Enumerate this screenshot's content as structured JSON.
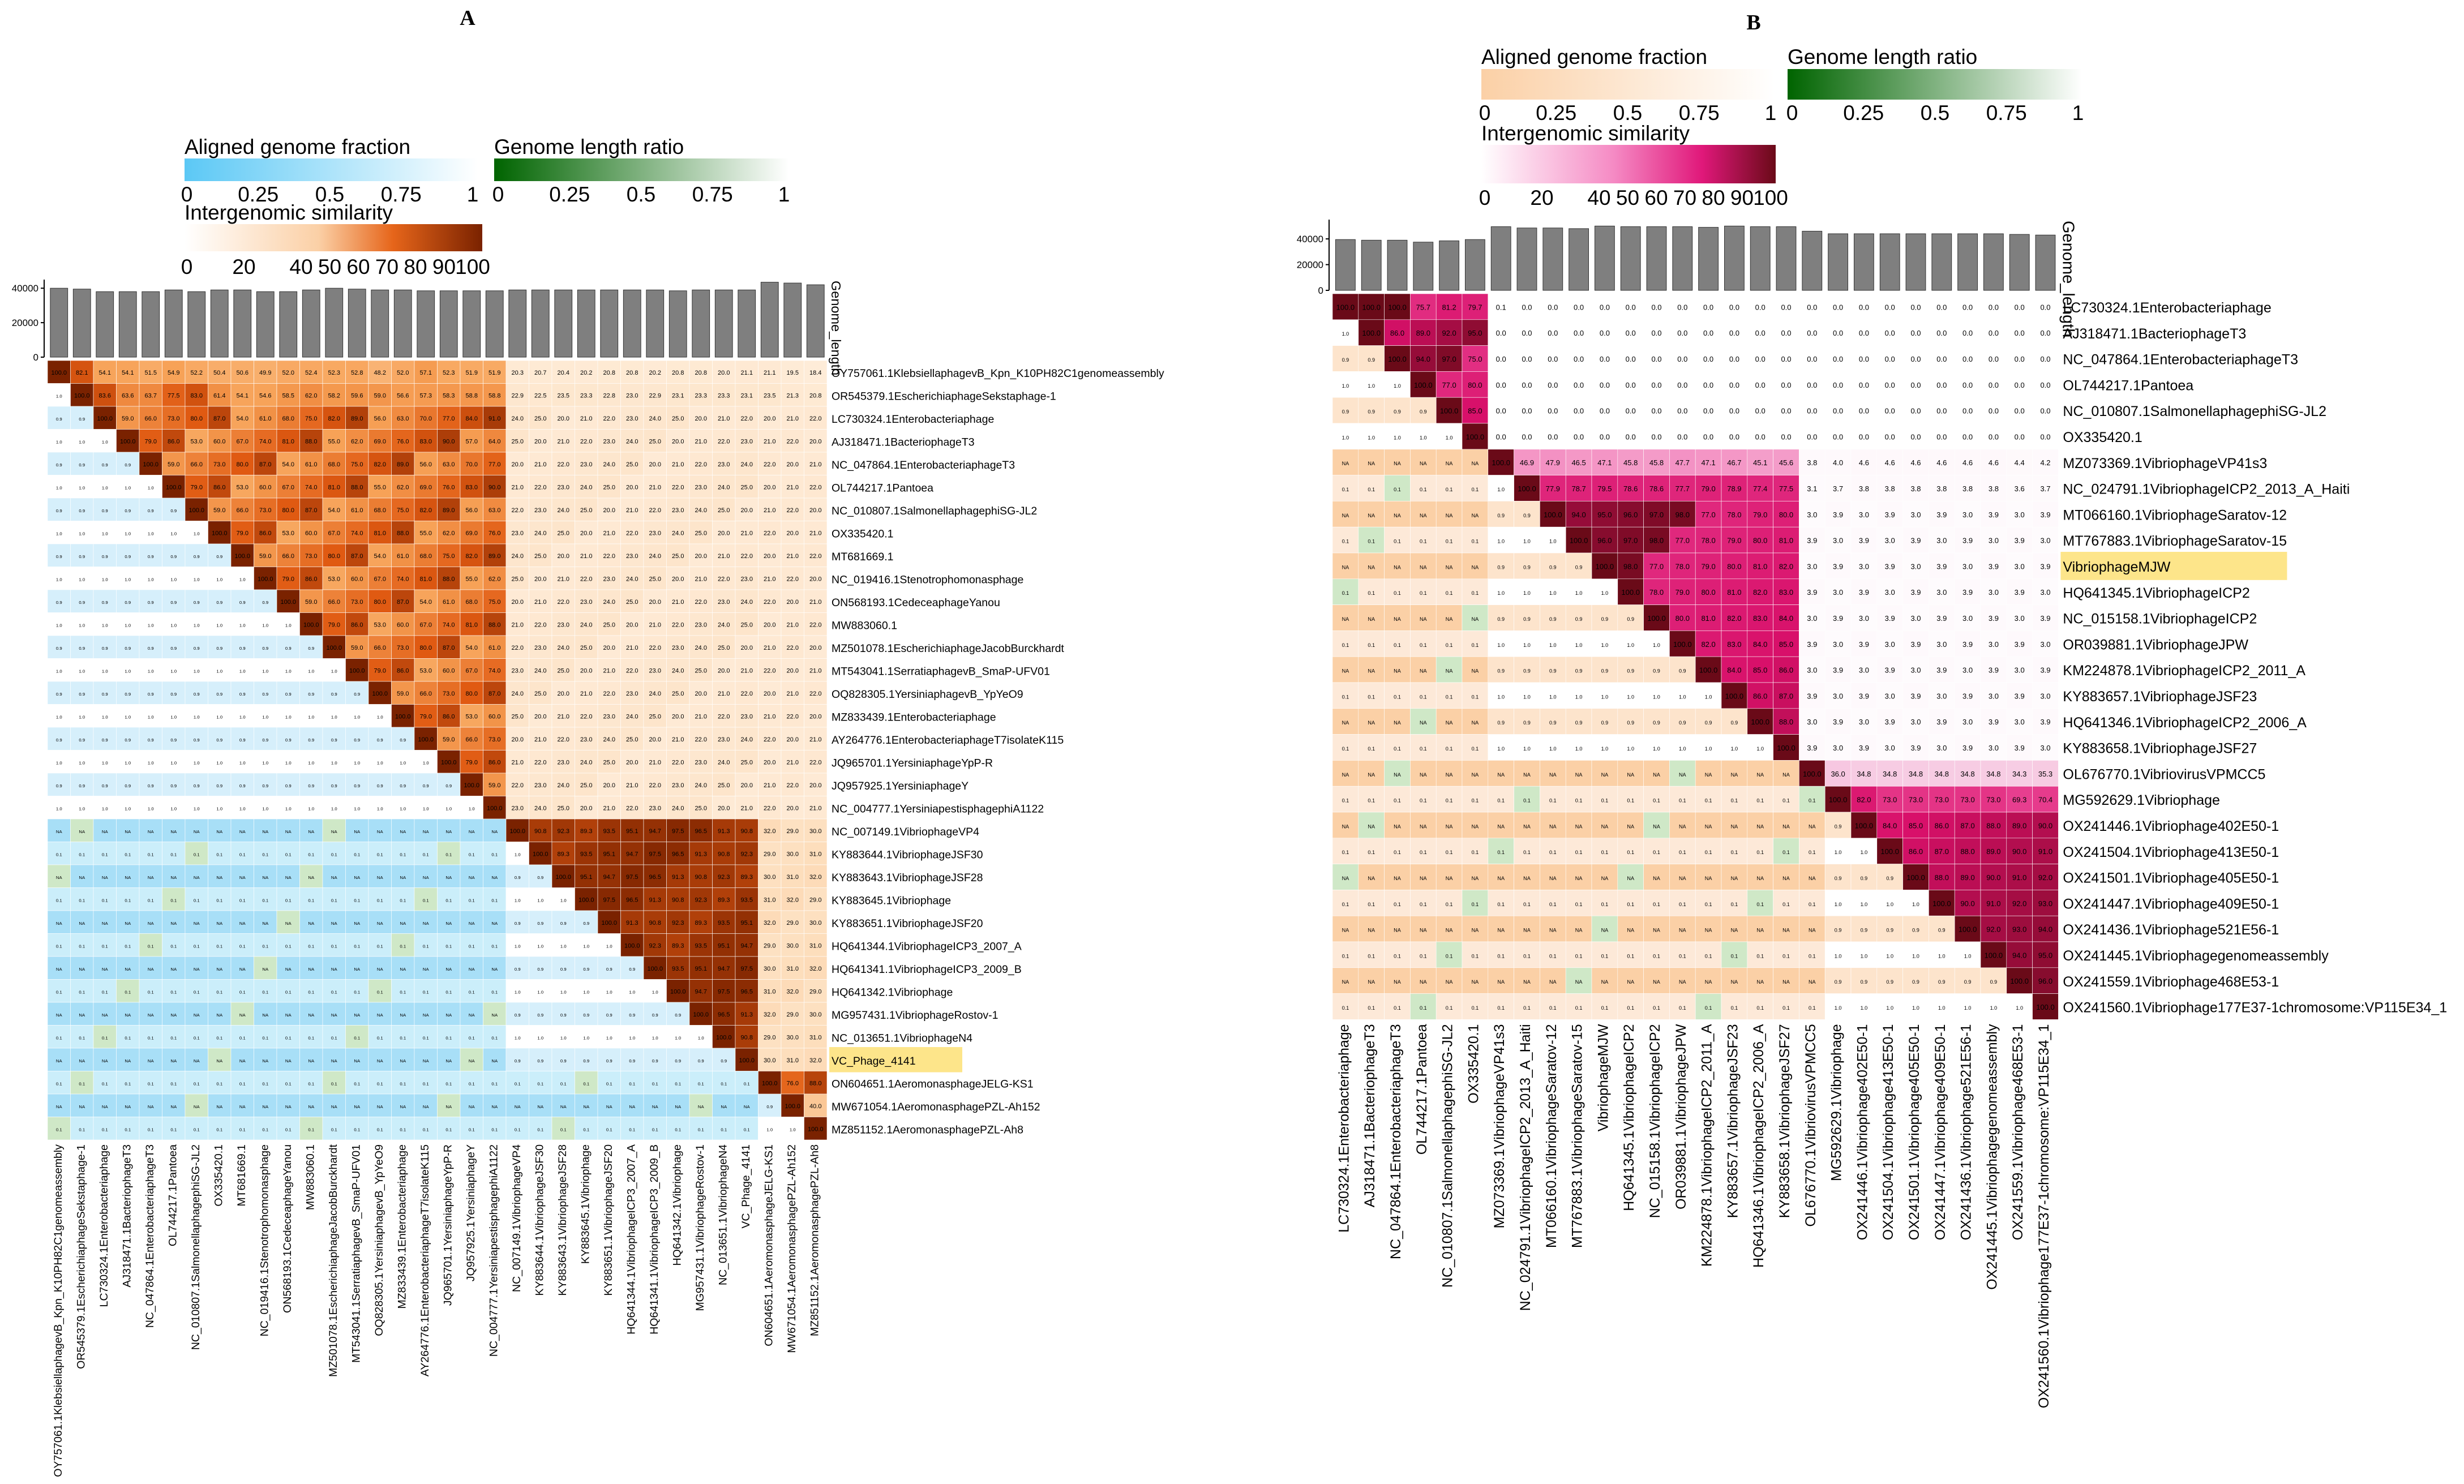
{
  "chart_data": [
    {
      "panel": "A",
      "type": "heatmap",
      "title": "A",
      "legends": {
        "aligned": {
          "title": "Aligned genome fraction",
          "ticks": [
            "0",
            "0.25",
            "0.5",
            "0.75",
            "1"
          ],
          "colors": [
            "#5bc8f5",
            "#ffffff"
          ]
        },
        "length": {
          "title": "Genome length ratio",
          "ticks": [
            "0",
            "0.25",
            "0.5",
            "0.75",
            "1"
          ],
          "colors": [
            "#006400",
            "#ffffff"
          ]
        },
        "similarity": {
          "title": "Intergenomic similarity",
          "ticks": [
            "0",
            "20",
            "40",
            "50",
            "60",
            "70",
            "80",
            "90",
            "100"
          ],
          "colors": [
            "#ffffff",
            "#f4a35a",
            "#e6651a",
            "#7a2200"
          ]
        }
      },
      "bar_axis": {
        "label": "Genome_length",
        "ticks": [
          "0",
          "20000",
          "40000"
        ],
        "ymax": 45000
      },
      "genomes": [
        "OY757061.1KlebsiellaphagevB_Kpn_K10PH82C1genomeassembly",
        "OR545379.1EscherichiaphageSekstaphage-1",
        "LC730324.1Enterobacteriaphage",
        "AJ318471.1BacteriophageT3",
        "NC_047864.1EnterobacteriaphageT3",
        "OL744217.1Pantoea",
        "NC_010807.1SalmonellaphagephiSG-JL2",
        "OX335420.1",
        "MT681669.1",
        "NC_019416.1Stenotrophomonasphage",
        "ON568193.1CedeceaphageYanou",
        "MW883060.1",
        "MZ501078.1EscherichiaphageJacobBurckhardt",
        "MT543041.1SerratiaphagevB_SmaP-UFV01",
        "OQ828305.1YersiniaphagevB_YpYeO9",
        "MZ833439.1Enterobacteriaphage",
        "AY264776.1EnterobacteriaphageT7isolateK115",
        "JQ965701.1YersiniaphageYpP-R",
        "JQ957925.1YersiniaphageY",
        "NC_004777.1YersiniapestisphagephiA1122",
        "NC_007149.1VibriophageVP4",
        "KY883644.1VibriophageJSF30",
        "KY883643.1VibriophageJSF28",
        "KY883645.1Vibriophage",
        "KY883651.1VibriophageJSF20",
        "HQ641344.1VibriophageICP3_2007_A",
        "HQ641341.1VibriophageICP3_2009_B",
        "HQ641342.1Vibriophage",
        "MG957431.1VibriophageRostov-1",
        "NC_013651.1VibriophageN4",
        "VC_Phage_4141",
        "ON604651.1AeromonasphageJELG-KS1",
        "MW671054.1AeromonasphagePZL-Ah152",
        "MZ851152.1AeromonasphagePZL-Ah8"
      ],
      "lengths": [
        40,
        39.5,
        38,
        38,
        38,
        39,
        38,
        39,
        39,
        38,
        38,
        39,
        40,
        39.5,
        39,
        39,
        38.5,
        38.5,
        38.5,
        38.5,
        39,
        39,
        39,
        39,
        39,
        39,
        39,
        38.5,
        39,
        39,
        39,
        43.5,
        43,
        42
      ],
      "highlight": "VC_Phage_4141",
      "upper_first_rows": [
        [
          "100.0",
          "82.1",
          "54.1",
          "54.1",
          "51.5",
          "54.9",
          "52.2",
          "50.4",
          "50.6",
          "49.9",
          "52.0",
          "52.4",
          "52.3",
          "52.8",
          "48.2",
          "52.0",
          "57.1",
          "52.3",
          "51.9",
          "51.9",
          "20.3",
          "20.7",
          "20.4",
          "20.2",
          "20.8",
          "20.8",
          "20.2",
          "20.8",
          "20.8",
          "20.0",
          "21.1",
          "21.1",
          "19.5",
          "18.4"
        ],
        [
          "",
          "100.0",
          "83.6",
          "63.6",
          "63.7",
          "77.5",
          "83.0",
          "61.4",
          "54.1",
          "54.6",
          "58.5",
          "62.0",
          "58.2",
          "59.6",
          "59.0",
          "56.6",
          "57.3",
          "58.3",
          "58.8",
          "58.8",
          "22.9",
          "22.5",
          "23.5",
          "23.3",
          "22.8",
          "23.0",
          "22.9",
          "23.1",
          "23.3",
          "23.3",
          "23.1",
          "23.5",
          "21.3",
          "20.8"
        ]
      ],
      "upper_block_sample": [
        "95.1",
        "94.7",
        "97.5",
        "96.5",
        "91.3",
        "90.8",
        "92.3",
        "89.3",
        "93.5",
        "31.6",
        "31.1",
        "32.5",
        "31.3",
        "31.4",
        "32.3"
      ],
      "lower_sample": [
        "0.9",
        "1.0",
        "0.8",
        "0.8",
        "1.0",
        "NA",
        "1.0",
        "0.9",
        "0.9"
      ]
    },
    {
      "panel": "B",
      "type": "heatmap",
      "title": "B",
      "legends": {
        "aligned": {
          "title": "Aligned genome fraction",
          "ticks": [
            "0",
            "0.25",
            "0.5",
            "0.75",
            "1"
          ],
          "colors": [
            "#fbd0a6",
            "#ffffff"
          ]
        },
        "length": {
          "title": "Genome length ratio",
          "ticks": [
            "0",
            "0.25",
            "0.5",
            "0.75",
            "1"
          ],
          "colors": [
            "#006400",
            "#ffffff"
          ]
        },
        "similarity": {
          "title": "Intergenomic similarity",
          "ticks": [
            "0",
            "20",
            "40",
            "50",
            "60",
            "70",
            "80",
            "90",
            "100"
          ],
          "colors": [
            "#ffffff",
            "#f07ab8",
            "#e0187a",
            "#7a0a1a"
          ]
        }
      },
      "bar_axis": {
        "label": "Genome_length",
        "ticks": [
          "0",
          "20000",
          "40000"
        ],
        "ymax": 55000
      },
      "genomes": [
        "LC730324.1Enterobacteriaphage",
        "AJ318471.1BacteriophageT3",
        "NC_047864.1EnterobacteriaphageT3",
        "OL744217.1Pantoea",
        "NC_010807.1SalmonellaphagephiSG-JL2",
        "OX335420.1",
        "MZ073369.1VibriophageVP41s3",
        "NC_024791.1VibriophageICP2_2013_A_Haiti",
        "MT066160.1VibriophageSaratov-12",
        "MT767883.1VibriophageSaratov-15",
        "VibriophageMJW",
        "HQ641345.1VibriophageICP2",
        "NC_015158.1VibriophageICP2",
        "OR039881.1VibriophageJPW",
        "KM224878.1VibriophageICP2_2011_A",
        "KY883657.1VibriophageJSF23",
        "HQ641346.1VibriophageICP2_2006_A",
        "KY883658.1VibriophageJSF27",
        "OL676770.1VibriovirusVPMCC5",
        "MG592629.1Vibriophage",
        "OX241446.1Vibriophage402E50-1",
        "OX241504.1Vibriophage413E50-1",
        "OX241501.1Vibriophage405E50-1",
        "OX241447.1Vibriophage409E50-1",
        "OX241436.1Vibriophage521E56-1",
        "OX241445.1Vibriophagegenomeassembly",
        "OX241559.1Vibriophage468E53-1",
        "OX241560.1Vibriophage177E37-1chromosome:VP115E34_1"
      ],
      "lengths": [
        39.5,
        39,
        39,
        37.5,
        38.5,
        39.5,
        49.5,
        48.5,
        48.5,
        48,
        50,
        49.5,
        49.5,
        49.5,
        49,
        50,
        49.5,
        49.5,
        46,
        44,
        44,
        44,
        44,
        44,
        44,
        44,
        43.5,
        43
      ],
      "highlight": "VibriophageMJW",
      "upper_rows": {
        "LC730324.1Enterobacteriaphage": [
          "100.0",
          "100.0",
          "100.0",
          "75.7",
          "81.2",
          "79.7",
          "0.1",
          "0.0",
          "0.0",
          "0.0",
          "0.0",
          "0.0",
          "0.0",
          "0.0",
          "0.0",
          "0.0",
          "0.0",
          "0.0",
          "0.0",
          "0.0",
          "0.0",
          "0.0",
          "0.0",
          "0.0",
          "0.0",
          "0.0",
          "0.0",
          "0.0"
        ],
        "MZ073369.1VibriophageVP41s3": [
          "46.9",
          "47.9",
          "46.5",
          "47.1",
          "45.8",
          "45.8",
          "47.7",
          "47.1",
          "46.7",
          "45.1",
          "45.6",
          "3.8",
          "4.0",
          "4.6",
          "4.6",
          "4.6",
          "4.6",
          "4.6",
          "4.6",
          "4.4",
          "4.2"
        ],
        "NC_024791.1VibriophageICP2_2013_A_Haiti": [
          "77.9",
          "78.7",
          "79.5",
          "78.6",
          "78.6",
          "77.7",
          "79.0",
          "78.9",
          "77.4",
          "77.5",
          "3.1",
          "3.7",
          "3.8",
          "3.8",
          "3.8",
          "3.8",
          "3.8",
          "3.8",
          "3.6",
          "3.7"
        ],
        "OL676770.1VibriovirusVPMCC5": [
          "36.0",
          "34.8",
          "34.8",
          "34.8",
          "34.8",
          "34.8",
          "34.8",
          "34.3",
          "35.3"
        ],
        "MG592629.1Vibriophage": [
          "73.0",
          "73.0",
          "73.0",
          "73.0",
          "73.0",
          "69.3",
          "70.4"
        ]
      },
      "right_cols_sample": [
        "3.8",
        "3.3",
        "3.2",
        "3.3",
        "3.4",
        "3.2",
        "3.2",
        "3.2"
      ],
      "lower_sample": [
        "0.9",
        "1.0",
        "1.0",
        "NA",
        "0.9",
        "1.0",
        "0.9",
        "0.8"
      ]
    }
  ]
}
